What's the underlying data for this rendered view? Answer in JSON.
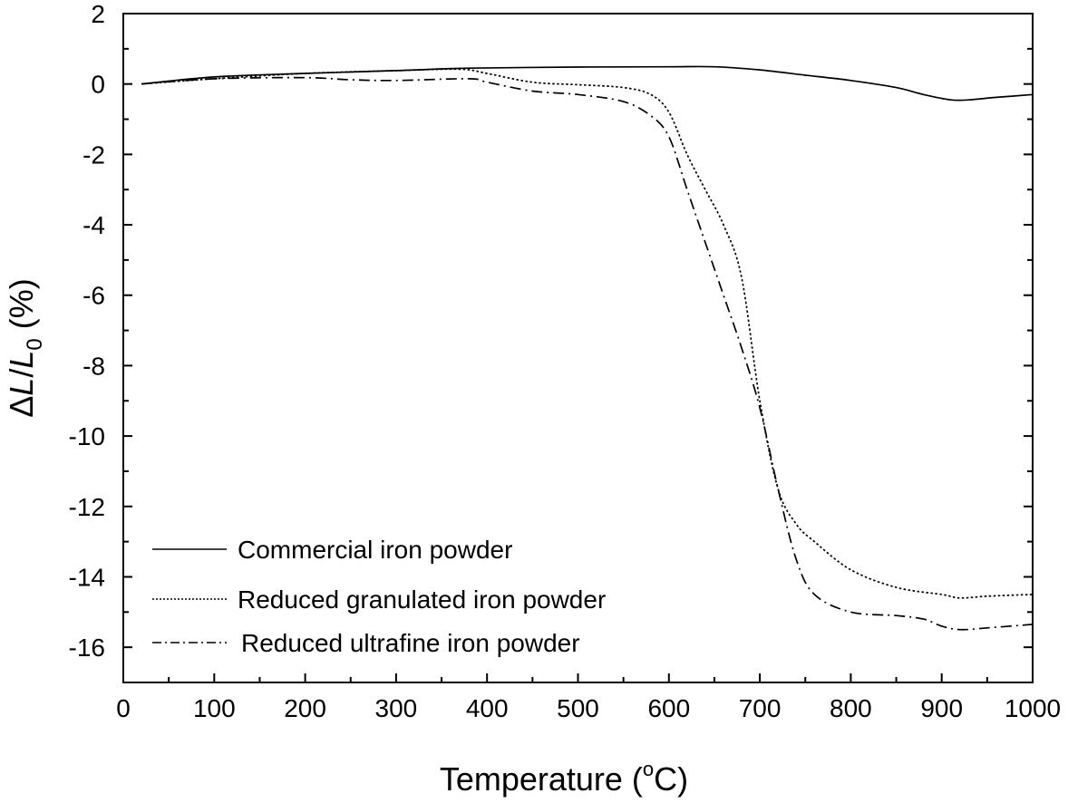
{
  "chart_data": {
    "type": "line",
    "xlabel_main": "Temperature (",
    "xlabel_sup": "o",
    "xlabel_end": "C)",
    "ylabel_delta": "Δ",
    "ylabel_L": "L",
    "ylabel_slash": "/",
    "ylabel_L0": "L",
    "ylabel_sub": "0",
    "ylabel_unit": " (%)",
    "xlim": [
      0,
      1000
    ],
    "ylim": [
      -17,
      2
    ],
    "x_ticks": [
      0,
      100,
      200,
      300,
      400,
      500,
      600,
      700,
      800,
      900,
      1000
    ],
    "x_tick_labels": [
      "0",
      "100",
      "200",
      "300",
      "400",
      "500",
      "600",
      "700",
      "800",
      "900",
      "1000"
    ],
    "y_ticks": [
      2,
      0,
      -2,
      -4,
      -6,
      -8,
      -10,
      -12,
      -14,
      -16
    ],
    "y_tick_labels": [
      "2",
      "0",
      "-2",
      "-4",
      "-6",
      "-8",
      "-10",
      "-12",
      "-14",
      "-16"
    ],
    "grid": false,
    "legend_position": "bottom-left",
    "series": [
      {
        "name": "Commercial iron powder",
        "style": "solid",
        "x": [
          20,
          100,
          200,
          300,
          380,
          500,
          600,
          650,
          700,
          750,
          800,
          850,
          880,
          910,
          930,
          960,
          1000
        ],
        "y": [
          0.0,
          0.2,
          0.3,
          0.38,
          0.45,
          0.48,
          0.49,
          0.49,
          0.4,
          0.25,
          0.1,
          -0.1,
          -0.3,
          -0.45,
          -0.45,
          -0.38,
          -0.3
        ]
      },
      {
        "name": "Reduced granulated iron powder",
        "style": "dotted",
        "x": [
          20,
          100,
          200,
          300,
          370,
          400,
          450,
          500,
          550,
          580,
          600,
          620,
          640,
          660,
          680,
          700,
          720,
          740,
          760,
          800,
          850,
          900,
          920,
          950,
          1000
        ],
        "y": [
          0.0,
          0.15,
          0.3,
          0.38,
          0.42,
          0.3,
          0.05,
          -0.02,
          -0.1,
          -0.3,
          -0.8,
          -2.0,
          -3.0,
          -4.0,
          -5.5,
          -9.0,
          -11.5,
          -12.5,
          -13.0,
          -13.8,
          -14.3,
          -14.5,
          -14.6,
          -14.55,
          -14.5
        ]
      },
      {
        "name": "Reduced ultrafine  iron powder",
        "style": "dashdot",
        "x": [
          20,
          100,
          200,
          250,
          300,
          380,
          400,
          450,
          500,
          550,
          580,
          600,
          620,
          640,
          660,
          680,
          700,
          720,
          740,
          760,
          800,
          850,
          880,
          900,
          920,
          950,
          1000
        ],
        "y": [
          0.0,
          0.15,
          0.18,
          0.12,
          0.1,
          0.15,
          0.05,
          -0.2,
          -0.3,
          -0.5,
          -0.9,
          -1.5,
          -3.0,
          -4.5,
          -6.0,
          -7.5,
          -9.2,
          -11.5,
          -13.5,
          -14.5,
          -15.0,
          -15.1,
          -15.2,
          -15.4,
          -15.5,
          -15.45,
          -15.35
        ]
      }
    ]
  }
}
